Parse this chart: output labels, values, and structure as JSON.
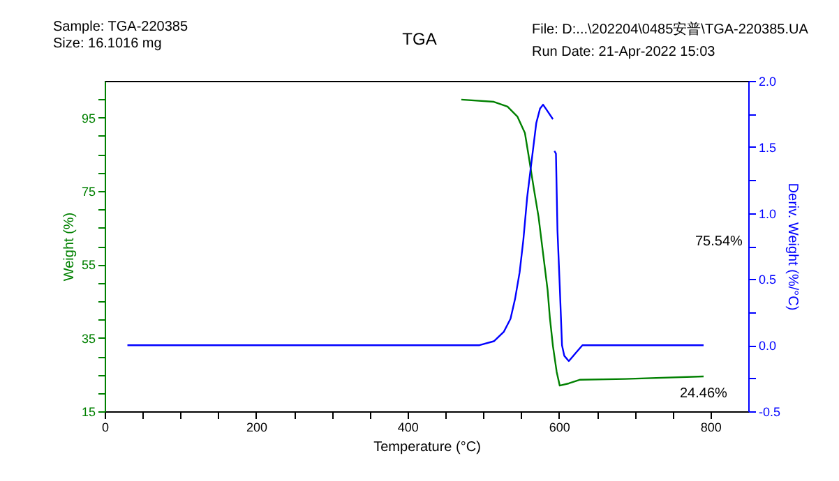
{
  "chart_data": {
    "type": "line",
    "title": "TGA",
    "xlabel": "Temperature (°C)",
    "ylabel": "Weight (%)",
    "y2label": "Deriv. Weight (%/°C)",
    "annotations": [
      "Sample: TGA-220385",
      "Size:  16.1016 mg",
      "File: D:...\\202204\\0485安普\\TGA-220385.UA",
      "Run Date: 21-Apr-2022 15:03",
      "75.54%",
      "24.46%"
    ],
    "series": [
      {
        "color": "#008000",
        "x": [
          471,
          514,
          532,
          545,
          555,
          560,
          567,
          573,
          579,
          585,
          588,
          592,
          597,
          601,
          613,
          628,
          687,
          791
        ],
        "values": [
          99.9,
          99.3,
          98,
          95.3,
          90.8,
          84.5,
          75.4,
          68,
          58,
          48,
          40.4,
          32.8,
          25.7,
          22,
          22.6,
          23.6,
          23.8,
          24.5
        ]
      },
      {
        "color": "#0000ff",
        "axis": "y2",
        "x": [
          30,
          471,
          495,
          514,
          527,
          536,
          542,
          548,
          553,
          558,
          564,
          570,
          575,
          579,
          585,
          592,
          593,
          594,
          596,
          598,
          601,
          604,
          607,
          613,
          622,
          631,
          681,
          791
        ],
        "values": [
          0,
          0,
          0,
          0.03,
          0.1,
          0.2,
          0.35,
          0.55,
          0.8,
          1.12,
          1.4,
          1.68,
          1.79,
          1.82,
          1.77,
          1.71,
          null,
          1.47,
          1.45,
          0.87,
          0.45,
          0,
          -0.08,
          -0.12,
          -0.06,
          0,
          0,
          0
        ]
      }
    ],
    "xlim": [
      0,
      850
    ],
    "xticks": [
      0,
      {
        "value": 50,
        "label": null
      },
      {
        "value": 100,
        "label": null
      },
      {
        "value": 150,
        "label": null
      },
      200,
      {
        "value": 250,
        "label": null
      },
      {
        "value": 300,
        "label": null
      },
      {
        "value": 350,
        "label": null
      },
      400,
      {
        "value": 450,
        "label": null
      },
      {
        "value": 500,
        "label": null
      },
      {
        "value": 550,
        "label": null
      },
      600,
      {
        "value": 650,
        "label": null
      },
      {
        "value": 700,
        "label": null
      },
      {
        "value": 750,
        "label": null
      },
      800
    ],
    "ylim": [
      15,
      105
    ],
    "yticks": [
      15,
      {
        "value": 20,
        "label": null
      },
      {
        "value": 25,
        "label": null
      },
      {
        "value": 30,
        "label": null
      },
      35,
      {
        "value": 40,
        "label": null
      },
      {
        "value": 45,
        "label": null
      },
      {
        "value": 50,
        "label": null
      },
      55,
      {
        "value": 60,
        "label": null
      },
      {
        "value": 65,
        "label": null
      },
      {
        "value": 70,
        "label": null
      },
      75,
      {
        "value": 80,
        "label": null
      },
      {
        "value": 85,
        "label": null
      },
      {
        "value": 90,
        "label": null
      },
      95,
      {
        "value": 100,
        "label": null
      }
    ],
    "y2lim": [
      -0.5,
      2.0
    ],
    "y2ticks": [
      {
        "value": -0.5,
        "label": "-0.5"
      },
      {
        "value": -0.25,
        "label": null
      },
      {
        "value": 0,
        "label": "0.0"
      },
      {
        "value": 0.25,
        "label": null
      },
      {
        "value": 0.5,
        "label": "0.5"
      },
      {
        "value": 0.75,
        "label": null
      },
      {
        "value": 1,
        "label": "1.0"
      },
      {
        "value": 1.25,
        "label": null
      },
      {
        "value": 1.5,
        "label": "1.5"
      },
      {
        "value": 1.75,
        "label": null
      },
      {
        "value": 2,
        "label": "2.0"
      }
    ],
    "grid": false,
    "line_style": "solid",
    "marker": "none"
  }
}
